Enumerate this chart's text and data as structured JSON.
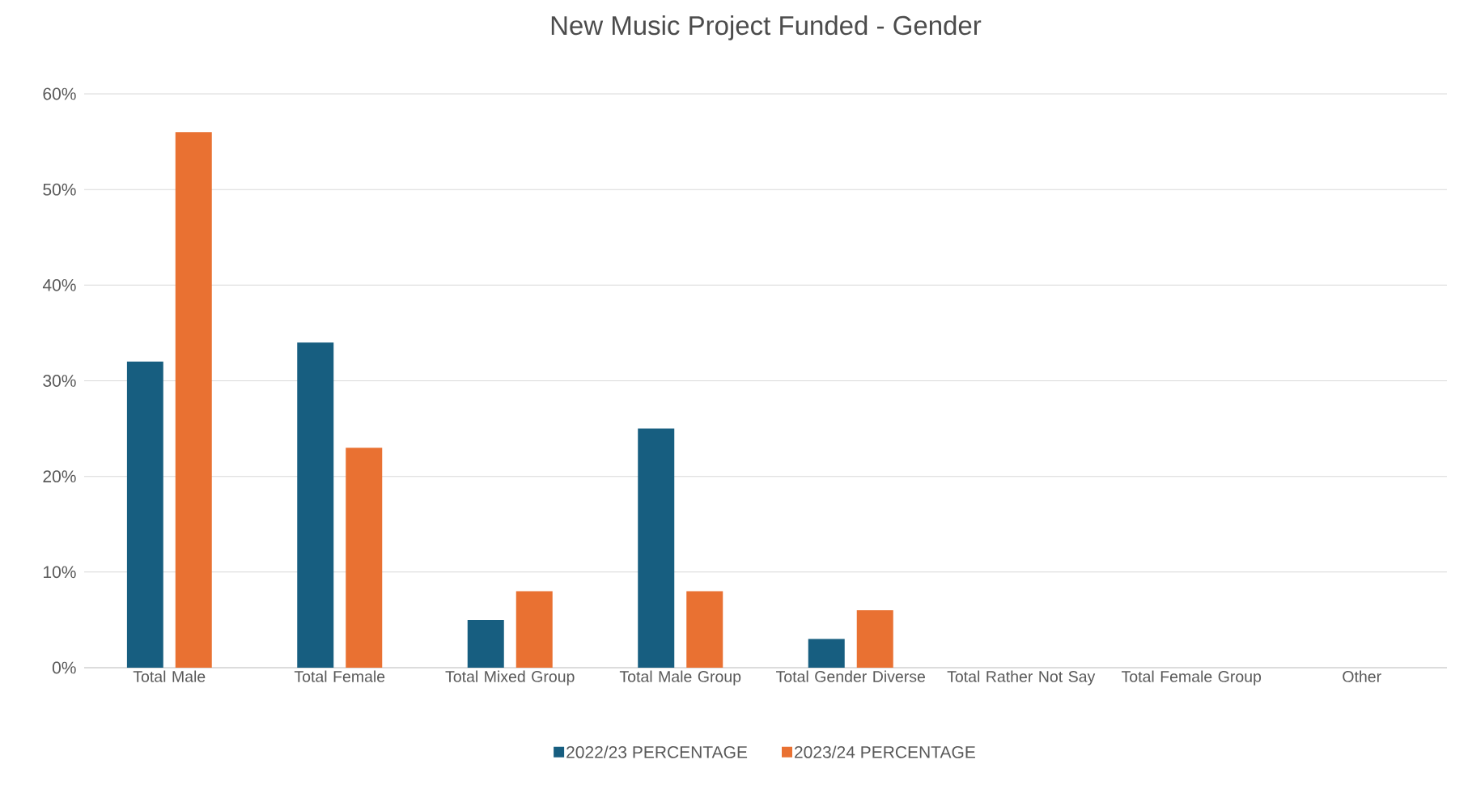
{
  "chart_data": {
    "type": "bar",
    "title": "New Music Project Funded   - Gender",
    "categories": [
      "Total Male",
      "Total Female",
      "Total Mixed Group",
      "Total Male Group",
      "Total Gender Diverse",
      "Total Rather Not Say",
      "Total Female Group",
      "Other"
    ],
    "series": [
      {
        "name": "2022/23 PERCENTAGE",
        "color": "#175e80",
        "values": [
          32,
          34,
          5,
          25,
          3,
          0,
          0,
          0
        ]
      },
      {
        "name": "2023/24 PERCENTAGE",
        "color": "#e97132",
        "values": [
          56,
          23,
          8,
          8,
          6,
          0,
          0,
          0
        ]
      }
    ],
    "ylim": [
      0,
      60
    ],
    "yticks": [
      {
        "value": 0,
        "label": "0%"
      },
      {
        "value": 10,
        "label": "10%"
      },
      {
        "value": 20,
        "label": "20%"
      },
      {
        "value": 30,
        "label": "30%"
      },
      {
        "value": 40,
        "label": "40%"
      },
      {
        "value": 50,
        "label": "50%"
      },
      {
        "value": 60,
        "label": "60%"
      }
    ],
    "grid": "y",
    "legend": "bottom"
  }
}
